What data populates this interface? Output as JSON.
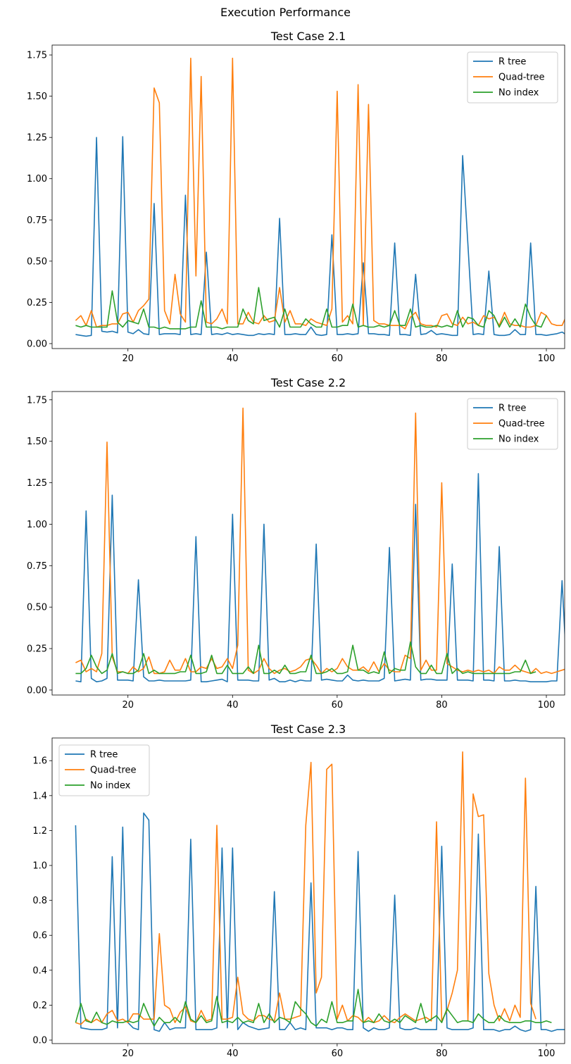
{
  "figure": {
    "title": "Execution Performance"
  },
  "colors": {
    "r_tree": "#1f77b4",
    "quad_tree": "#ff7f0e",
    "no_index": "#2ca02c"
  },
  "chart_data": [
    {
      "type": "line",
      "title": "Test Case 2.1",
      "xlabel": "",
      "ylabel": "",
      "xlim": [
        5.5,
        103.5
      ],
      "ylim": [
        -0.03,
        1.81
      ],
      "xticks": [
        20,
        40,
        60,
        80,
        100
      ],
      "yticks": [
        0.0,
        0.25,
        0.5,
        0.75,
        1.0,
        1.25,
        1.5,
        1.75
      ],
      "ytick_labels": [
        "0.00",
        "0.25",
        "0.50",
        "0.75",
        "1.00",
        "1.25",
        "1.50",
        "1.75"
      ],
      "legend": "top-right",
      "x_start": 10,
      "series": [
        {
          "name": "R tree",
          "color": "#1f77b4",
          "values": [
            0.055,
            0.05,
            0.045,
            0.05,
            1.25,
            0.075,
            0.07,
            0.075,
            0.065,
            1.255,
            0.07,
            0.06,
            0.085,
            0.06,
            0.055,
            0.85,
            0.055,
            0.06,
            0.06,
            0.06,
            0.055,
            0.9,
            0.055,
            0.06,
            0.055,
            0.555,
            0.055,
            0.06,
            0.055,
            0.065,
            0.055,
            0.06,
            0.055,
            0.05,
            0.05,
            0.06,
            0.055,
            0.06,
            0.055,
            0.76,
            0.055,
            0.055,
            0.06,
            0.055,
            0.055,
            0.1,
            0.055,
            0.05,
            0.055,
            0.66,
            0.055,
            0.055,
            0.06,
            0.055,
            0.06,
            0.49,
            0.06,
            0.06,
            0.055,
            0.055,
            0.05,
            0.61,
            0.055,
            0.055,
            0.05,
            0.42,
            0.055,
            0.06,
            0.08,
            0.055,
            0.06,
            0.055,
            0.05,
            0.05,
            1.14,
            0.6,
            0.055,
            0.06,
            0.055,
            0.44,
            0.055,
            0.05,
            0.05,
            0.055,
            0.085,
            0.055,
            0.055,
            0.61,
            0.055,
            0.055,
            0.05,
            0.055,
            0.06,
            0.07,
            0.05,
            0.055
          ]
        },
        {
          "name": "Quad-tree",
          "color": "#ff7f0e",
          "values": [
            0.14,
            0.17,
            0.11,
            0.2,
            0.1,
            0.11,
            0.11,
            0.12,
            0.12,
            0.18,
            0.19,
            0.13,
            0.2,
            0.23,
            0.27,
            1.55,
            1.46,
            0.2,
            0.12,
            0.42,
            0.18,
            0.13,
            1.73,
            0.41,
            1.62,
            0.13,
            0.12,
            0.15,
            0.21,
            0.12,
            1.73,
            0.12,
            0.12,
            0.19,
            0.13,
            0.12,
            0.17,
            0.13,
            0.14,
            0.34,
            0.13,
            0.2,
            0.12,
            0.12,
            0.11,
            0.15,
            0.13,
            0.12,
            0.11,
            0.21,
            1.53,
            0.13,
            0.17,
            0.12,
            1.57,
            0.11,
            1.45,
            0.14,
            0.12,
            0.12,
            0.11,
            0.11,
            0.11,
            0.09,
            0.16,
            0.19,
            0.12,
            0.11,
            0.11,
            0.1,
            0.17,
            0.18,
            0.12,
            0.11,
            0.16,
            0.12,
            0.13,
            0.11,
            0.17,
            0.15,
            0.16,
            0.11,
            0.19,
            0.12,
            0.11,
            0.11,
            0.1,
            0.1,
            0.11,
            0.19,
            0.17,
            0.12,
            0.11,
            0.11,
            0.18
          ]
        },
        {
          "name": "No index",
          "color": "#2ca02c",
          "values": [
            0.11,
            0.1,
            0.11,
            0.1,
            0.1,
            0.1,
            0.1,
            0.32,
            0.13,
            0.1,
            0.14,
            0.13,
            0.12,
            0.21,
            0.1,
            0.1,
            0.09,
            0.1,
            0.09,
            0.09,
            0.09,
            0.09,
            0.1,
            0.1,
            0.26,
            0.1,
            0.1,
            0.1,
            0.09,
            0.1,
            0.1,
            0.1,
            0.21,
            0.14,
            0.12,
            0.34,
            0.14,
            0.15,
            0.16,
            0.1,
            0.21,
            0.1,
            0.1,
            0.1,
            0.15,
            0.12,
            0.1,
            0.1,
            0.21,
            0.1,
            0.1,
            0.11,
            0.11,
            0.24,
            0.1,
            0.11,
            0.1,
            0.1,
            0.11,
            0.1,
            0.11,
            0.2,
            0.11,
            0.11,
            0.21,
            0.1,
            0.11,
            0.1,
            0.1,
            0.11,
            0.1,
            0.11,
            0.1,
            0.2,
            0.1,
            0.16,
            0.15,
            0.11,
            0.1,
            0.2,
            0.17,
            0.1,
            0.16,
            0.1,
            0.15,
            0.1,
            0.24,
            0.16,
            0.11,
            0.1,
            0.17
          ]
        }
      ]
    },
    {
      "type": "line",
      "title": "Test Case 2.2",
      "xlabel": "",
      "ylabel": "",
      "xlim": [
        5.5,
        103.5
      ],
      "ylim": [
        -0.03,
        1.8
      ],
      "xticks": [
        20,
        40,
        60,
        80,
        100
      ],
      "yticks": [
        0.0,
        0.25,
        0.5,
        0.75,
        1.0,
        1.25,
        1.5,
        1.75
      ],
      "ytick_labels": [
        "0.00",
        "0.25",
        "0.50",
        "0.75",
        "1.00",
        "1.25",
        "1.50",
        "1.75"
      ],
      "legend": "top-right",
      "x_start": 10,
      "series": [
        {
          "name": "R tree",
          "color": "#1f77b4",
          "values": [
            0.055,
            0.05,
            1.08,
            0.07,
            0.05,
            0.055,
            0.07,
            1.175,
            0.06,
            0.06,
            0.06,
            0.055,
            0.665,
            0.08,
            0.055,
            0.055,
            0.06,
            0.055,
            0.055,
            0.055,
            0.055,
            0.055,
            0.06,
            0.925,
            0.05,
            0.05,
            0.055,
            0.06,
            0.065,
            0.05,
            1.06,
            0.06,
            0.06,
            0.06,
            0.055,
            0.055,
            1.0,
            0.06,
            0.07,
            0.05,
            0.05,
            0.06,
            0.05,
            0.06,
            0.055,
            0.055,
            0.88,
            0.06,
            0.065,
            0.06,
            0.055,
            0.055,
            0.09,
            0.06,
            0.055,
            0.06,
            0.055,
            0.055,
            0.055,
            0.07,
            0.86,
            0.055,
            0.06,
            0.065,
            0.06,
            1.12,
            0.06,
            0.065,
            0.065,
            0.06,
            0.06,
            0.06,
            0.76,
            0.06,
            0.06,
            0.06,
            0.055,
            1.305,
            0.06,
            0.06,
            0.055,
            0.865,
            0.055,
            0.055,
            0.06,
            0.055,
            0.055,
            0.05,
            0.05,
            0.05,
            0.05,
            0.055,
            0.055,
            0.66,
            0.055,
            0.055,
            0.055,
            0.05
          ]
        },
        {
          "name": "Quad-tree",
          "color": "#ff7f0e",
          "values": [
            0.165,
            0.18,
            0.11,
            0.13,
            0.11,
            0.22,
            1.495,
            0.2,
            0.11,
            0.11,
            0.1,
            0.14,
            0.11,
            0.13,
            0.2,
            0.1,
            0.1,
            0.11,
            0.18,
            0.12,
            0.12,
            0.19,
            0.11,
            0.11,
            0.14,
            0.13,
            0.19,
            0.13,
            0.14,
            0.19,
            0.13,
            0.27,
            1.7,
            0.12,
            0.1,
            0.12,
            0.19,
            0.13,
            0.1,
            0.12,
            0.13,
            0.11,
            0.12,
            0.14,
            0.18,
            0.19,
            0.15,
            0.1,
            0.13,
            0.11,
            0.13,
            0.19,
            0.14,
            0.12,
            0.12,
            0.14,
            0.11,
            0.17,
            0.11,
            0.16,
            0.12,
            0.11,
            0.11,
            0.21,
            0.19,
            1.67,
            0.12,
            0.18,
            0.12,
            0.12,
            1.25,
            0.16,
            0.14,
            0.12,
            0.11,
            0.12,
            0.11,
            0.12,
            0.11,
            0.12,
            0.1,
            0.14,
            0.12,
            0.12,
            0.15,
            0.12,
            0.11,
            0.1,
            0.13,
            0.1,
            0.11,
            0.1,
            0.11,
            0.12,
            0.13,
            0.19
          ]
        },
        {
          "name": "No index",
          "color": "#2ca02c",
          "values": [
            0.1,
            0.1,
            0.13,
            0.21,
            0.14,
            0.1,
            0.12,
            0.22,
            0.1,
            0.11,
            0.1,
            0.1,
            0.12,
            0.22,
            0.1,
            0.12,
            0.1,
            0.1,
            0.1,
            0.1,
            0.11,
            0.11,
            0.21,
            0.1,
            0.1,
            0.11,
            0.21,
            0.1,
            0.1,
            0.15,
            0.1,
            0.1,
            0.1,
            0.14,
            0.1,
            0.27,
            0.1,
            0.1,
            0.12,
            0.1,
            0.15,
            0.1,
            0.1,
            0.11,
            0.11,
            0.21,
            0.1,
            0.1,
            0.11,
            0.13,
            0.1,
            0.1,
            0.11,
            0.27,
            0.12,
            0.12,
            0.1,
            0.11,
            0.1,
            0.23,
            0.1,
            0.13,
            0.12,
            0.12,
            0.29,
            0.14,
            0.1,
            0.1,
            0.15,
            0.1,
            0.1,
            0.22,
            0.1,
            0.13,
            0.1,
            0.11,
            0.1,
            0.1,
            0.1,
            0.1,
            0.1,
            0.1,
            0.1,
            0.1,
            0.11,
            0.11,
            0.18,
            0.1,
            0.11
          ]
        }
      ]
    },
    {
      "type": "line",
      "title": "Test Case 2.3",
      "xlabel": "",
      "ylabel": "",
      "xlim": [
        5.5,
        103.5
      ],
      "ylim": [
        -0.02,
        1.73
      ],
      "xticks": [
        20,
        40,
        60,
        80,
        100
      ],
      "yticks": [
        0.0,
        0.2,
        0.4,
        0.6,
        0.8,
        1.0,
        1.2,
        1.4,
        1.6
      ],
      "ytick_labels": [
        "0.0",
        "0.2",
        "0.4",
        "0.6",
        "0.8",
        "1.0",
        "1.2",
        "1.4",
        "1.6"
      ],
      "legend": "top-left",
      "x_start": 10,
      "series": [
        {
          "name": "R tree",
          "color": "#1f77b4",
          "values": [
            1.23,
            0.07,
            0.065,
            0.06,
            0.06,
            0.06,
            0.07,
            1.05,
            0.07,
            1.22,
            0.1,
            0.07,
            0.06,
            1.3,
            1.26,
            0.06,
            0.05,
            0.1,
            0.06,
            0.07,
            0.07,
            0.07,
            1.15,
            0.06,
            0.06,
            0.06,
            0.06,
            0.07,
            1.1,
            0.07,
            1.1,
            0.06,
            0.1,
            0.08,
            0.07,
            0.06,
            0.065,
            0.07,
            0.85,
            0.06,
            0.06,
            0.1,
            0.06,
            0.07,
            0.06,
            0.9,
            0.07,
            0.07,
            0.07,
            0.06,
            0.07,
            0.07,
            0.06,
            0.06,
            1.08,
            0.07,
            0.05,
            0.07,
            0.06,
            0.06,
            0.07,
            0.83,
            0.07,
            0.06,
            0.06,
            0.07,
            0.06,
            0.06,
            0.06,
            0.06,
            1.11,
            0.07,
            0.06,
            0.06,
            0.06,
            0.06,
            0.07,
            1.18,
            0.06,
            0.06,
            0.06,
            0.05,
            0.06,
            0.06,
            0.08,
            0.06,
            0.05,
            0.06,
            0.88,
            0.06,
            0.06,
            0.05,
            0.06,
            0.06,
            0.06,
            0.08,
            0.06
          ]
        },
        {
          "name": "Quad-tree",
          "color": "#ff7f0e",
          "values": [
            0.1,
            0.09,
            0.12,
            0.1,
            0.12,
            0.1,
            0.15,
            0.17,
            0.11,
            0.12,
            0.1,
            0.15,
            0.15,
            0.12,
            0.12,
            0.12,
            0.61,
            0.2,
            0.18,
            0.1,
            0.16,
            0.19,
            0.11,
            0.1,
            0.17,
            0.11,
            0.12,
            1.23,
            0.12,
            0.12,
            0.13,
            0.36,
            0.15,
            0.12,
            0.11,
            0.14,
            0.14,
            0.12,
            0.11,
            0.27,
            0.12,
            0.12,
            0.13,
            0.14,
            1.23,
            1.59,
            0.27,
            0.36,
            1.55,
            1.58,
            0.12,
            0.2,
            0.11,
            0.14,
            0.13,
            0.1,
            0.13,
            0.1,
            0.11,
            0.14,
            0.11,
            0.1,
            0.13,
            0.15,
            0.13,
            0.11,
            0.12,
            0.13,
            0.11,
            1.25,
            0.11,
            0.17,
            0.27,
            0.4,
            1.65,
            0.11,
            1.41,
            1.28,
            1.29,
            0.38,
            0.2,
            0.11,
            0.18,
            0.11,
            0.2,
            0.13,
            1.5,
            0.21,
            0.12
          ]
        },
        {
          "name": "No index",
          "color": "#2ca02c",
          "values": [
            0.1,
            0.21,
            0.11,
            0.1,
            0.16,
            0.1,
            0.09,
            0.11,
            0.1,
            0.1,
            0.11,
            0.1,
            0.11,
            0.21,
            0.14,
            0.08,
            0.13,
            0.1,
            0.1,
            0.13,
            0.1,
            0.22,
            0.12,
            0.1,
            0.14,
            0.1,
            0.11,
            0.25,
            0.1,
            0.11,
            0.1,
            0.13,
            0.1,
            0.11,
            0.1,
            0.21,
            0.1,
            0.15,
            0.1,
            0.13,
            0.12,
            0.1,
            0.22,
            0.18,
            0.15,
            0.1,
            0.08,
            0.12,
            0.1,
            0.22,
            0.1,
            0.1,
            0.11,
            0.11,
            0.29,
            0.1,
            0.11,
            0.1,
            0.15,
            0.11,
            0.1,
            0.12,
            0.1,
            0.14,
            0.12,
            0.1,
            0.21,
            0.1,
            0.12,
            0.14,
            0.1,
            0.18,
            0.14,
            0.1,
            0.11,
            0.11,
            0.1,
            0.15,
            0.12,
            0.1,
            0.1,
            0.14,
            0.11,
            0.1,
            0.1,
            0.1,
            0.11,
            0.11,
            0.1,
            0.1,
            0.11,
            0.1
          ]
        }
      ]
    }
  ]
}
